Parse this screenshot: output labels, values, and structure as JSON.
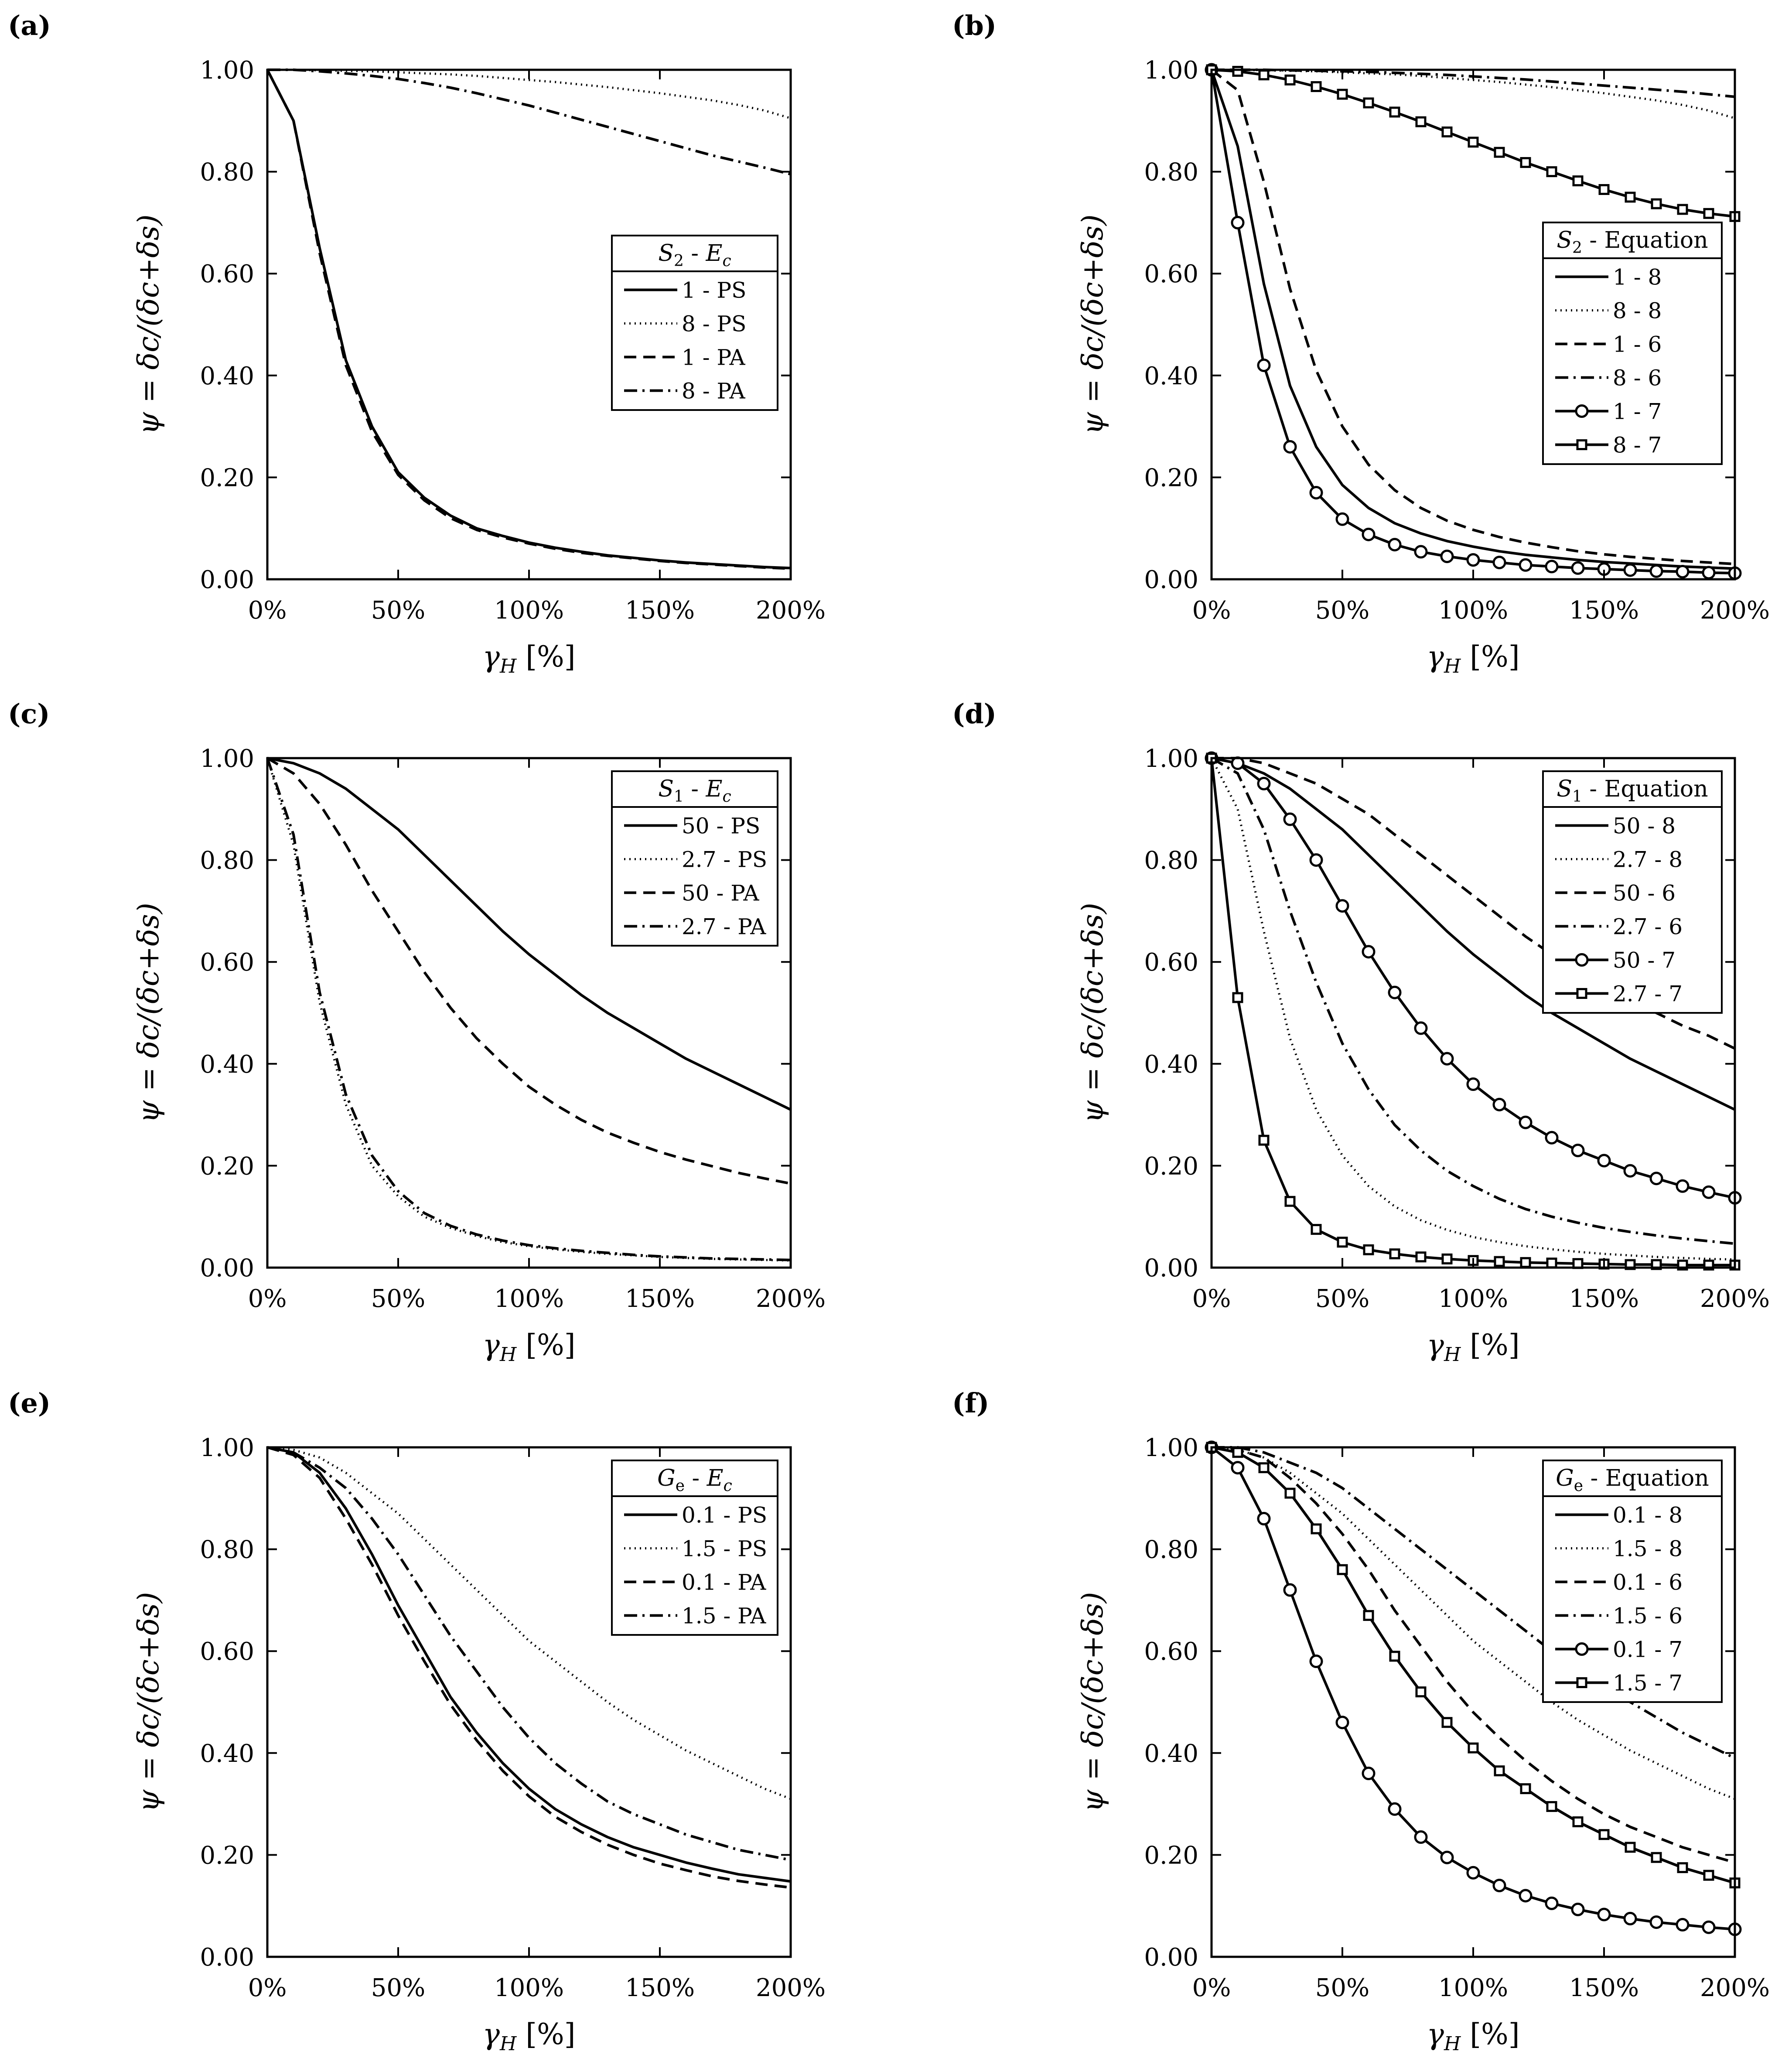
{
  "figure": {
    "xlabel": "γH [%]",
    "ylabel": "ψ = δc/(δc+δs)",
    "x_ticks": [
      "0%",
      "50%",
      "100%",
      "150%",
      "200%"
    ],
    "y_ticks": [
      "0.00",
      "0.20",
      "0.40",
      "0.60",
      "0.80",
      "1.00"
    ]
  },
  "chart_data": [
    {
      "type": "line",
      "panel": "(a)",
      "legend_title": "S2 - Ec",
      "legend_loc": "center-right",
      "xlim": [
        0,
        200
      ],
      "ylim": [
        0,
        1
      ],
      "xlabel": "γH [%]",
      "ylabel": "ψ = δc/(δc+δs)",
      "x": [
        0,
        10,
        20,
        30,
        40,
        50,
        60,
        70,
        80,
        90,
        100,
        110,
        120,
        130,
        140,
        150,
        160,
        170,
        180,
        190,
        200
      ],
      "series": [
        {
          "name": "1 - PS",
          "style": "solid",
          "values": [
            1.0,
            0.9,
            0.65,
            0.43,
            0.3,
            0.21,
            0.16,
            0.125,
            0.1,
            0.085,
            0.072,
            0.062,
            0.054,
            0.047,
            0.042,
            0.037,
            0.033,
            0.03,
            0.027,
            0.024,
            0.022
          ]
        },
        {
          "name": "8 - PS",
          "style": "dotted",
          "values": [
            1.0,
            1.0,
            0.999,
            0.998,
            0.997,
            0.995,
            0.993,
            0.991,
            0.988,
            0.984,
            0.98,
            0.976,
            0.971,
            0.966,
            0.96,
            0.954,
            0.947,
            0.94,
            0.931,
            0.92,
            0.905
          ]
        },
        {
          "name": "1 - PA",
          "style": "dashed",
          "values": [
            1.0,
            0.9,
            0.64,
            0.42,
            0.29,
            0.205,
            0.155,
            0.12,
            0.097,
            0.082,
            0.07,
            0.06,
            0.052,
            0.046,
            0.041,
            0.036,
            0.032,
            0.029,
            0.026,
            0.023,
            0.021
          ]
        },
        {
          "name": "8 - PA",
          "style": "dashdot",
          "values": [
            1.0,
            1.0,
            0.997,
            0.993,
            0.988,
            0.982,
            0.974,
            0.965,
            0.954,
            0.942,
            0.93,
            0.916,
            0.902,
            0.888,
            0.874,
            0.86,
            0.846,
            0.832,
            0.82,
            0.808,
            0.795
          ]
        }
      ]
    },
    {
      "type": "line",
      "panel": "(b)",
      "legend_title": "S2 - Equation",
      "legend_loc": "center-right",
      "xlim": [
        0,
        200
      ],
      "ylim": [
        0,
        1
      ],
      "xlabel": "γH [%]",
      "ylabel": "ψ = δc/(δc+δs)",
      "x": [
        0,
        10,
        20,
        30,
        40,
        50,
        60,
        70,
        80,
        90,
        100,
        110,
        120,
        130,
        140,
        150,
        160,
        170,
        180,
        190,
        200
      ],
      "series": [
        {
          "name": "1 - 8",
          "style": "solid",
          "values": [
            1.0,
            0.85,
            0.58,
            0.38,
            0.26,
            0.185,
            0.14,
            0.11,
            0.09,
            0.075,
            0.064,
            0.055,
            0.048,
            0.043,
            0.038,
            0.034,
            0.031,
            0.028,
            0.025,
            0.023,
            0.021
          ]
        },
        {
          "name": "8 - 8",
          "style": "dotted",
          "values": [
            1.0,
            1.0,
            0.999,
            0.998,
            0.997,
            0.995,
            0.993,
            0.991,
            0.988,
            0.984,
            0.98,
            0.976,
            0.971,
            0.966,
            0.96,
            0.954,
            0.947,
            0.94,
            0.931,
            0.92,
            0.905
          ]
        },
        {
          "name": "1 - 6",
          "style": "dashed",
          "values": [
            1.0,
            0.96,
            0.78,
            0.57,
            0.41,
            0.3,
            0.225,
            0.175,
            0.14,
            0.115,
            0.097,
            0.083,
            0.072,
            0.063,
            0.055,
            0.049,
            0.044,
            0.04,
            0.036,
            0.033,
            0.03
          ]
        },
        {
          "name": "8 - 6",
          "style": "dashdot",
          "values": [
            1.0,
            1.0,
            1.0,
            0.999,
            0.998,
            0.997,
            0.996,
            0.994,
            0.992,
            0.99,
            0.987,
            0.984,
            0.981,
            0.977,
            0.973,
            0.969,
            0.965,
            0.961,
            0.957,
            0.952,
            0.947
          ]
        },
        {
          "name": "1 - 7",
          "style": "solid-circle",
          "values": [
            1.0,
            0.7,
            0.42,
            0.26,
            0.17,
            0.118,
            0.088,
            0.068,
            0.054,
            0.045,
            0.038,
            0.033,
            0.028,
            0.025,
            0.022,
            0.02,
            0.018,
            0.016,
            0.015,
            0.013,
            0.012
          ]
        },
        {
          "name": "8 - 7",
          "style": "solid-square",
          "values": [
            1.0,
            0.997,
            0.99,
            0.98,
            0.967,
            0.952,
            0.935,
            0.917,
            0.898,
            0.878,
            0.858,
            0.838,
            0.818,
            0.8,
            0.782,
            0.765,
            0.75,
            0.737,
            0.726,
            0.718,
            0.712
          ]
        }
      ]
    },
    {
      "type": "line",
      "panel": "(c)",
      "legend_title": "S1 - Ec",
      "legend_loc": "top-right",
      "xlim": [
        0,
        200
      ],
      "ylim": [
        0,
        1
      ],
      "xlabel": "γH [%]",
      "ylabel": "ψ = δc/(δc+δs)",
      "x": [
        0,
        10,
        20,
        30,
        40,
        50,
        60,
        70,
        80,
        90,
        100,
        110,
        120,
        130,
        140,
        150,
        160,
        170,
        180,
        190,
        200
      ],
      "series": [
        {
          "name": "50 - PS",
          "style": "solid",
          "values": [
            1.0,
            0.99,
            0.97,
            0.94,
            0.9,
            0.86,
            0.81,
            0.76,
            0.71,
            0.66,
            0.615,
            0.575,
            0.535,
            0.5,
            0.47,
            0.44,
            0.41,
            0.385,
            0.36,
            0.335,
            0.31
          ]
        },
        {
          "name": "2.7 - PS",
          "style": "dotted",
          "values": [
            1.0,
            0.83,
            0.52,
            0.32,
            0.2,
            0.14,
            0.1,
            0.078,
            0.062,
            0.05,
            0.042,
            0.036,
            0.031,
            0.027,
            0.024,
            0.021,
            0.019,
            0.017,
            0.016,
            0.015,
            0.014
          ]
        },
        {
          "name": "50 - PA",
          "style": "dashed",
          "values": [
            1.0,
            0.97,
            0.91,
            0.83,
            0.74,
            0.66,
            0.58,
            0.51,
            0.45,
            0.4,
            0.355,
            0.32,
            0.29,
            0.265,
            0.245,
            0.227,
            0.212,
            0.199,
            0.186,
            0.175,
            0.165
          ]
        },
        {
          "name": "2.7 - PA",
          "style": "dashdot",
          "values": [
            1.0,
            0.85,
            0.54,
            0.34,
            0.22,
            0.15,
            0.107,
            0.082,
            0.065,
            0.053,
            0.044,
            0.038,
            0.033,
            0.029,
            0.025,
            0.022,
            0.02,
            0.018,
            0.017,
            0.016,
            0.015
          ]
        }
      ]
    },
    {
      "type": "line",
      "panel": "(d)",
      "legend_title": "S1 - Equation",
      "legend_loc": "top-right",
      "xlim": [
        0,
        200
      ],
      "ylim": [
        0,
        1
      ],
      "xlabel": "γH [%]",
      "ylabel": "ψ = δc/(δc+δs)",
      "x": [
        0,
        10,
        20,
        30,
        40,
        50,
        60,
        70,
        80,
        90,
        100,
        110,
        120,
        130,
        140,
        150,
        160,
        170,
        180,
        190,
        200
      ],
      "series": [
        {
          "name": "50 - 8",
          "style": "solid",
          "values": [
            1.0,
            0.99,
            0.97,
            0.94,
            0.9,
            0.86,
            0.81,
            0.76,
            0.71,
            0.66,
            0.615,
            0.575,
            0.535,
            0.5,
            0.47,
            0.44,
            0.41,
            0.385,
            0.36,
            0.335,
            0.31
          ]
        },
        {
          "name": "2.7 - 8",
          "style": "dotted",
          "values": [
            1.0,
            0.9,
            0.66,
            0.45,
            0.31,
            0.22,
            0.16,
            0.12,
            0.093,
            0.074,
            0.06,
            0.05,
            0.042,
            0.036,
            0.031,
            0.027,
            0.024,
            0.021,
            0.019,
            0.017,
            0.016
          ]
        },
        {
          "name": "50 - 6",
          "style": "dashed",
          "values": [
            1.0,
            1.0,
            0.99,
            0.97,
            0.95,
            0.92,
            0.89,
            0.85,
            0.81,
            0.77,
            0.73,
            0.69,
            0.65,
            0.615,
            0.58,
            0.55,
            0.52,
            0.5,
            0.475,
            0.455,
            0.43
          ]
        },
        {
          "name": "2.7 - 6",
          "style": "dashdot",
          "values": [
            1.0,
            0.97,
            0.86,
            0.7,
            0.56,
            0.44,
            0.35,
            0.28,
            0.23,
            0.19,
            0.16,
            0.135,
            0.115,
            0.1,
            0.088,
            0.078,
            0.07,
            0.063,
            0.057,
            0.052,
            0.047
          ]
        },
        {
          "name": "50 - 7",
          "style": "solid-circle",
          "values": [
            1.0,
            0.99,
            0.95,
            0.88,
            0.8,
            0.71,
            0.62,
            0.54,
            0.47,
            0.41,
            0.36,
            0.32,
            0.285,
            0.255,
            0.23,
            0.21,
            0.19,
            0.175,
            0.16,
            0.148,
            0.137
          ]
        },
        {
          "name": "2.7 - 7",
          "style": "solid-square",
          "values": [
            1.0,
            0.53,
            0.25,
            0.13,
            0.075,
            0.05,
            0.035,
            0.027,
            0.021,
            0.017,
            0.014,
            0.012,
            0.01,
            0.009,
            0.008,
            0.007,
            0.006,
            0.006,
            0.005,
            0.005,
            0.005
          ]
        }
      ]
    },
    {
      "type": "line",
      "panel": "(e)",
      "legend_title": "Ge - Ec",
      "legend_loc": "top-right",
      "xlim": [
        0,
        200
      ],
      "ylim": [
        0,
        1
      ],
      "xlabel": "γH [%]",
      "ylabel": "ψ = δc/(δc+δs)",
      "x": [
        0,
        10,
        20,
        30,
        40,
        50,
        60,
        70,
        80,
        90,
        100,
        110,
        120,
        130,
        140,
        150,
        160,
        170,
        180,
        190,
        200
      ],
      "series": [
        {
          "name": "0.1 - PS",
          "style": "solid",
          "values": [
            1.0,
            0.99,
            0.95,
            0.88,
            0.79,
            0.69,
            0.6,
            0.51,
            0.44,
            0.38,
            0.33,
            0.29,
            0.26,
            0.235,
            0.215,
            0.2,
            0.185,
            0.173,
            0.162,
            0.155,
            0.148
          ]
        },
        {
          "name": "1.5 - PS",
          "style": "dotted",
          "values": [
            1.0,
            0.995,
            0.98,
            0.95,
            0.91,
            0.87,
            0.82,
            0.77,
            0.72,
            0.67,
            0.62,
            0.58,
            0.54,
            0.5,
            0.465,
            0.435,
            0.405,
            0.38,
            0.355,
            0.33,
            0.31
          ]
        },
        {
          "name": "0.1 - PA",
          "style": "dashed",
          "values": [
            1.0,
            0.985,
            0.94,
            0.86,
            0.77,
            0.67,
            0.58,
            0.495,
            0.425,
            0.365,
            0.315,
            0.275,
            0.245,
            0.22,
            0.2,
            0.183,
            0.17,
            0.158,
            0.149,
            0.142,
            0.136
          ]
        },
        {
          "name": "1.5 - PA",
          "style": "dashdot",
          "values": [
            1.0,
            0.99,
            0.96,
            0.92,
            0.86,
            0.79,
            0.71,
            0.63,
            0.56,
            0.49,
            0.43,
            0.38,
            0.34,
            0.305,
            0.28,
            0.26,
            0.24,
            0.225,
            0.21,
            0.2,
            0.19
          ]
        }
      ]
    },
    {
      "type": "line",
      "panel": "(f)",
      "legend_title": "Ge - Equation",
      "legend_loc": "top-right",
      "xlim": [
        0,
        200
      ],
      "ylim": [
        0,
        1
      ],
      "xlabel": "γH [%]",
      "ylabel": "ψ = δc/(δc+δs)",
      "x": [
        0,
        10,
        20,
        30,
        40,
        50,
        60,
        70,
        80,
        90,
        100,
        110,
        120,
        130,
        140,
        150,
        160,
        170,
        180,
        190,
        200
      ],
      "series": [
        {
          "name": "0.1 - 8",
          "style": "solid",
          "values": [
            1.0,
            0.99,
            0.96,
            0.91,
            0.84,
            0.76,
            0.67,
            0.59,
            0.52,
            0.46,
            0.41,
            0.365,
            0.33,
            0.295,
            0.265,
            0.24,
            0.215,
            0.195,
            0.175,
            0.16,
            0.145
          ]
        },
        {
          "name": "1.5 - 8",
          "style": "dotted",
          "values": [
            1.0,
            0.995,
            0.98,
            0.95,
            0.91,
            0.87,
            0.82,
            0.77,
            0.72,
            0.67,
            0.62,
            0.58,
            0.54,
            0.5,
            0.465,
            0.435,
            0.405,
            0.38,
            0.355,
            0.33,
            0.31
          ]
        },
        {
          "name": "0.1 - 6",
          "style": "dashed",
          "values": [
            1.0,
            0.995,
            0.98,
            0.94,
            0.89,
            0.83,
            0.76,
            0.68,
            0.61,
            0.54,
            0.48,
            0.43,
            0.385,
            0.345,
            0.31,
            0.28,
            0.255,
            0.235,
            0.215,
            0.2,
            0.185
          ]
        },
        {
          "name": "1.5 - 6",
          "style": "dashdot",
          "values": [
            1.0,
            1.0,
            0.99,
            0.97,
            0.95,
            0.92,
            0.88,
            0.84,
            0.8,
            0.76,
            0.72,
            0.68,
            0.64,
            0.6,
            0.565,
            0.53,
            0.5,
            0.47,
            0.44,
            0.415,
            0.39
          ]
        },
        {
          "name": "0.1 - 7",
          "style": "solid-circle",
          "values": [
            1.0,
            0.96,
            0.86,
            0.72,
            0.58,
            0.46,
            0.36,
            0.29,
            0.235,
            0.195,
            0.165,
            0.14,
            0.12,
            0.105,
            0.093,
            0.083,
            0.075,
            0.068,
            0.063,
            0.058,
            0.054
          ]
        },
        {
          "name": "1.5 - 7",
          "style": "solid-square",
          "values": [
            1.0,
            0.99,
            0.96,
            0.91,
            0.84,
            0.76,
            0.67,
            0.59,
            0.52,
            0.46,
            0.41,
            0.365,
            0.33,
            0.295,
            0.265,
            0.24,
            0.215,
            0.195,
            0.175,
            0.16,
            0.145
          ]
        }
      ]
    }
  ]
}
